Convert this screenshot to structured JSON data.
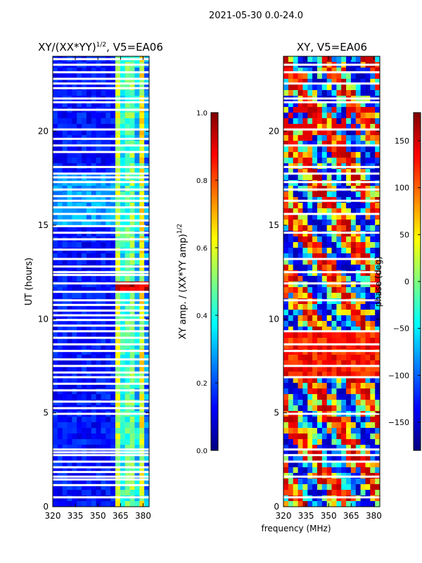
{
  "suptitle": "2021-05-30 0.0-24.0",
  "colors": {
    "panel_bg": "#00007f",
    "gap": "#ffffff",
    "jet": [
      "#00007f",
      "#0000ff",
      "#007fff",
      "#00ffff",
      "#7fff7f",
      "#ffff00",
      "#ff7f00",
      "#ff0000",
      "#7f0000"
    ]
  },
  "chart_data": [
    {
      "type": "heatmap",
      "title_main": "XY/(XX*YY)",
      "title_sup": "1/2",
      "title_tail": ", V5=EA06",
      "xlabel": "",
      "ylabel": "UT (hours)",
      "xlim": [
        320,
        384
      ],
      "ylim": [
        0,
        24
      ],
      "xticks": [
        320,
        335,
        350,
        365,
        380
      ],
      "yticks": [
        0,
        5,
        10,
        15,
        20
      ],
      "active_band_mhz": [
        361,
        383
      ],
      "flagged_hours": [
        0.5,
        1.15,
        1.45,
        1.6,
        1.85,
        2.1,
        2.4,
        2.75,
        2.9,
        3.05,
        4.95,
        5.25,
        5.6,
        6.2,
        6.55,
        6.9,
        7.15,
        7.5,
        7.85,
        8.3,
        8.65,
        9.0,
        9.35,
        9.65,
        9.95,
        10.2,
        10.45,
        10.75,
        11.0,
        11.45,
        11.9,
        12.35,
        12.5,
        12.8,
        13.2,
        13.7,
        14.25,
        14.6,
        14.95,
        15.25,
        15.6,
        15.95,
        16.3,
        16.55,
        16.9,
        17.3,
        17.55,
        17.75,
        18.1,
        18.9,
        19.25,
        19.6,
        20.1,
        21.15,
        21.55,
        21.75,
        22.3,
        22.55,
        22.8,
        23.15,
        23.55,
        23.85
      ],
      "colorbar": {
        "label_main": "XY amp. / (XX*YY amp)",
        "label_sup": "1/2",
        "range": [
          0.0,
          1.0
        ],
        "ticks": [
          "0.0",
          "0.2",
          "0.4",
          "0.6",
          "0.8",
          "1.0"
        ],
        "tick_values": [
          0.0,
          0.2,
          0.4,
          0.6,
          0.8,
          1.0
        ]
      }
    },
    {
      "type": "heatmap",
      "title_main": "XY, V5=EA06",
      "xlabel": "frequency (MHz)",
      "ylabel": "",
      "xlim": [
        320,
        384
      ],
      "ylim": [
        0,
        24
      ],
      "xticks": [
        320,
        335,
        350,
        365,
        380
      ],
      "yticks": [
        0,
        5,
        10,
        15,
        20
      ],
      "flagged_hours": [
        0.5,
        1.6,
        2.4,
        2.75,
        3.05,
        4.95,
        6.9,
        7.5,
        8.3,
        8.65,
        9.35,
        11.0,
        11.9,
        12.5,
        13.2,
        14.6,
        15.6,
        16.3,
        16.9,
        17.3,
        17.75,
        18.1,
        19.25,
        20.1,
        21.55,
        21.75,
        22.55,
        23.15,
        23.55
      ],
      "colorbar": {
        "label_main": "phase (deg)",
        "range": [
          -180,
          180
        ],
        "ticks": [
          "−150",
          "−100",
          "−50",
          "0",
          "50",
          "100",
          "150"
        ],
        "tick_values": [
          -150,
          -100,
          -50,
          0,
          50,
          100,
          150
        ]
      }
    }
  ]
}
